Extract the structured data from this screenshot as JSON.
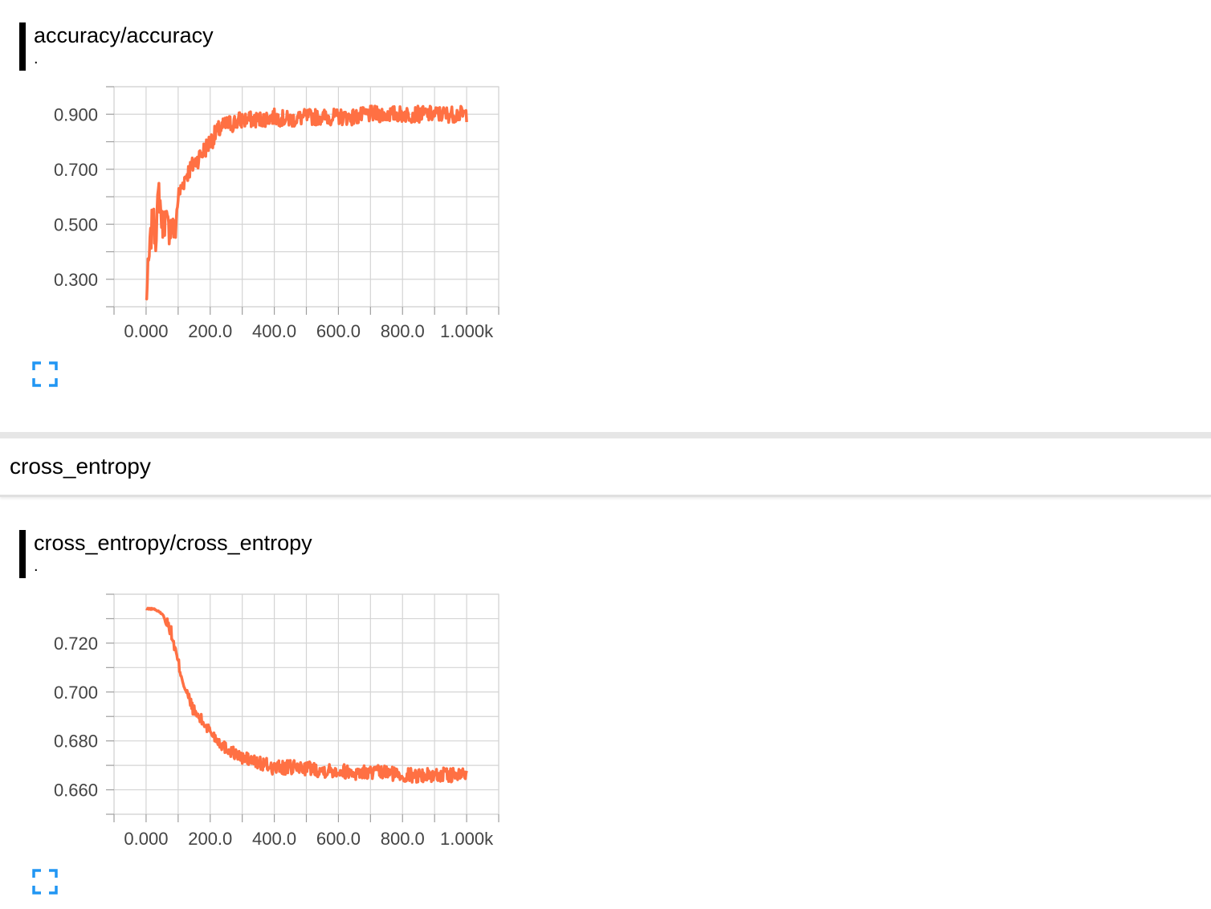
{
  "cards": [
    {
      "title": "accuracy/accuracy",
      "subtitle": ".",
      "y_ticks": [
        "0.900",
        "0.700",
        "0.500",
        "0.300"
      ],
      "x_ticks": [
        "0.000",
        "200.0",
        "400.0",
        "600.0",
        "800.0",
        "1.000k"
      ],
      "expand_icon": "fullscreen-icon"
    },
    {
      "title": "cross_entropy/cross_entropy",
      "subtitle": ".",
      "y_ticks": [
        "0.720",
        "0.700",
        "0.680",
        "0.660"
      ],
      "x_ticks": [
        "0.000",
        "200.0",
        "400.0",
        "600.0",
        "800.0",
        "1.000k"
      ],
      "expand_icon": "fullscreen-icon"
    }
  ],
  "section": {
    "title": "cross_entropy"
  },
  "colors": {
    "line": "#ff7043",
    "grid": "#d4d4d4",
    "axis": "#9e9e9e",
    "expand_icon": "#2196f3"
  },
  "chart_data": [
    {
      "type": "line",
      "title": "accuracy/accuracy",
      "xlim": [
        -100,
        1100
      ],
      "ylim": [
        0.2,
        1.0
      ],
      "grid": true,
      "x": [
        0,
        10,
        20,
        30,
        40,
        50,
        60,
        70,
        80,
        90,
        100,
        125,
        150,
        175,
        200,
        225,
        250,
        275,
        300,
        350,
        400,
        450,
        500,
        550,
        600,
        650,
        700,
        750,
        800,
        850,
        900,
        950,
        1000
      ],
      "series": [
        {
          "values": [
            0.22,
            0.38,
            0.52,
            0.46,
            0.62,
            0.5,
            0.52,
            0.48,
            0.5,
            0.46,
            0.6,
            0.68,
            0.72,
            0.76,
            0.8,
            0.84,
            0.86,
            0.87,
            0.88,
            0.88,
            0.89,
            0.88,
            0.89,
            0.89,
            0.89,
            0.89,
            0.9,
            0.9,
            0.9,
            0.9,
            0.9,
            0.9,
            0.9
          ]
        }
      ]
    },
    {
      "type": "line",
      "title": "cross_entropy/cross_entropy",
      "xlim": [
        -100,
        1100
      ],
      "ylim": [
        0.65,
        0.74
      ],
      "grid": true,
      "x": [
        0,
        25,
        50,
        75,
        100,
        125,
        150,
        175,
        200,
        225,
        250,
        275,
        300,
        325,
        350,
        375,
        400,
        450,
        500,
        550,
        600,
        650,
        700,
        750,
        800,
        850,
        900,
        950,
        1000
      ],
      "series": [
        {
          "values": [
            0.734,
            0.734,
            0.732,
            0.726,
            0.712,
            0.7,
            0.692,
            0.688,
            0.684,
            0.68,
            0.677,
            0.675,
            0.673,
            0.672,
            0.671,
            0.67,
            0.669,
            0.669,
            0.669,
            0.668,
            0.668,
            0.667,
            0.667,
            0.667,
            0.666,
            0.666,
            0.666,
            0.666,
            0.666
          ]
        }
      ]
    }
  ]
}
